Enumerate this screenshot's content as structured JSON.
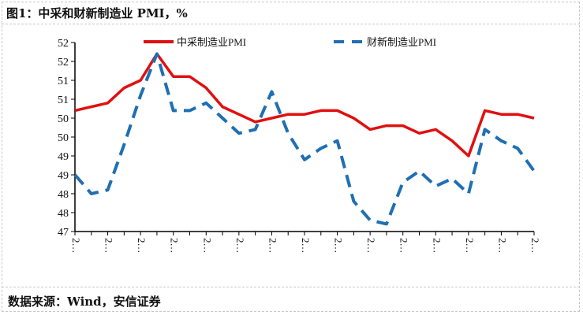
{
  "title": "图1：中采和财新制造业 PMI，%",
  "source": "数据来源：Wind，安信证券",
  "chart_data": {
    "type": "line",
    "title": "",
    "xlabel": "",
    "ylabel": "",
    "ylim": [
      47,
      52
    ],
    "y_tick_labels": [
      "47",
      "48",
      "48",
      "49",
      "49",
      "50",
      "50",
      "51",
      "51",
      "52",
      "52"
    ],
    "x_tick_label": "2…",
    "grid": false,
    "legend": "top",
    "series": [
      {
        "name": "中采制造业PMI",
        "color": "#e01010",
        "style": "solid",
        "values": [
          50.2,
          50.3,
          50.4,
          50.8,
          51.0,
          51.7,
          51.1,
          51.1,
          50.8,
          50.3,
          50.1,
          49.9,
          50.0,
          50.1,
          50.1,
          50.2,
          50.2,
          50.0,
          49.7,
          49.8,
          49.8,
          49.6,
          49.7,
          49.4,
          49.0,
          50.2,
          50.1,
          50.1,
          50.0
        ]
      },
      {
        "name": "财新制造业PMI",
        "color": "#1f6fb2",
        "style": "dashed",
        "values": [
          48.5,
          48.0,
          48.1,
          49.3,
          50.6,
          51.7,
          50.2,
          50.2,
          50.4,
          50.0,
          49.6,
          49.7,
          50.7,
          49.6,
          48.9,
          49.2,
          49.4,
          47.8,
          47.3,
          47.2,
          48.3,
          48.6,
          48.2,
          48.4,
          48.0,
          49.7,
          49.4,
          49.2,
          48.6
        ]
      }
    ]
  }
}
